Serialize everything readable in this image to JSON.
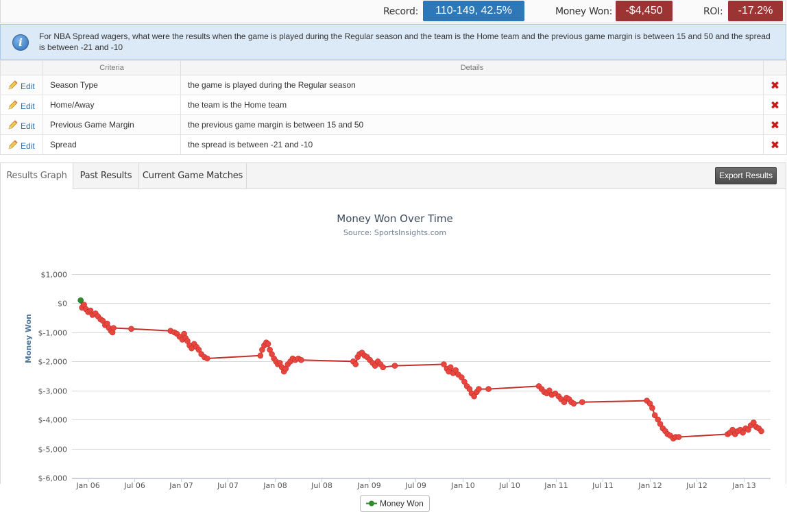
{
  "stats": {
    "record_label": "Record:",
    "record_value": "110-149, 42.5%",
    "money_label": "Money Won:",
    "money_value": "-$4,450",
    "roi_label": "ROI:",
    "roi_value": "-17.2%",
    "colors": {
      "record": "#2f78b8",
      "negative": "#9c3434"
    }
  },
  "info": {
    "icon": "info-icon",
    "text": "For NBA Spread wagers, what were the results when the game is played during the Regular season and the team is the Home team and the previous game margin is between 15 and 50 and the spread is between -21 and -10"
  },
  "criteria_table": {
    "headers": [
      "",
      "Criteria",
      "Details",
      ""
    ],
    "edit_label": "Edit",
    "rows": [
      {
        "criteria": "Season Type",
        "details": "the game is played during the Regular season"
      },
      {
        "criteria": "Home/Away",
        "details": "the team is the Home team"
      },
      {
        "criteria": "Previous Game Margin",
        "details": "the previous game margin is between 15 and 50"
      },
      {
        "criteria": "Spread",
        "details": "the spread is between -21 and -10"
      }
    ]
  },
  "tabs": [
    {
      "label": "Results Graph",
      "active": true
    },
    {
      "label": "Past Results",
      "active": false
    },
    {
      "label": "Current Game Matches",
      "active": false
    }
  ],
  "export_label": "Export Results",
  "chart_data": {
    "type": "line",
    "title": "Money Won Over Time",
    "subtitle": "Source: SportsInsights.com",
    "ylabel": "Money Won",
    "xlabel": "",
    "ylim": [
      -6000,
      1000
    ],
    "yticks": [
      1000,
      0,
      -1000,
      -2000,
      -3000,
      -4000,
      -5000,
      -6000
    ],
    "ytick_labels": [
      "$1,000",
      "$0",
      "$-1,000",
      "$-2,000",
      "$-3,000",
      "$-4,000",
      "$-5,000",
      "$-6,000"
    ],
    "xlim": [
      "2005-11-01",
      "2013-04-15"
    ],
    "xticks": [
      "2006-01-01",
      "2006-07-01",
      "2007-01-01",
      "2007-07-01",
      "2008-01-01",
      "2008-07-01",
      "2009-01-01",
      "2009-07-01",
      "2010-01-01",
      "2010-07-01",
      "2011-01-01",
      "2011-07-01",
      "2012-01-01",
      "2012-07-01",
      "2013-01-01"
    ],
    "xtick_labels": [
      "Jan 06",
      "Jul 06",
      "Jan 07",
      "Jul 07",
      "Jan 08",
      "Jul 08",
      "Jan 09",
      "Jul 09",
      "Jan 10",
      "Jul 10",
      "Jan 11",
      "Jul 11",
      "Jan 12",
      "Jul 12",
      "Jan 13"
    ],
    "grid": true,
    "legend_position": "bottom-center",
    "series": [
      {
        "name": "Money Won",
        "line_color": "#c0302a",
        "marker_color": "#e8463f",
        "start_marker_color": "#2e8b2e",
        "legend_marker_color": "#2e8b2e",
        "points": [
          [
            "2005-12-05",
            100
          ],
          [
            "2005-12-10",
            -150
          ],
          [
            "2005-12-18",
            -50
          ],
          [
            "2005-12-25",
            -200
          ],
          [
            "2006-01-03",
            -300
          ],
          [
            "2006-01-12",
            -250
          ],
          [
            "2006-01-20",
            -400
          ],
          [
            "2006-02-01",
            -350
          ],
          [
            "2006-02-10",
            -450
          ],
          [
            "2006-02-20",
            -550
          ],
          [
            "2006-03-01",
            -600
          ],
          [
            "2006-03-10",
            -750
          ],
          [
            "2006-03-18",
            -700
          ],
          [
            "2006-03-25",
            -850
          ],
          [
            "2006-04-02",
            -950
          ],
          [
            "2006-04-08",
            -1000
          ],
          [
            "2006-04-12",
            -850
          ],
          [
            "2006-06-20",
            -880
          ],
          [
            "2006-11-20",
            -950
          ],
          [
            "2006-12-05",
            -1000
          ],
          [
            "2006-12-15",
            -1050
          ],
          [
            "2006-12-25",
            -1150
          ],
          [
            "2007-01-05",
            -1250
          ],
          [
            "2007-01-12",
            -1050
          ],
          [
            "2007-01-18",
            -1200
          ],
          [
            "2007-01-25",
            -1300
          ],
          [
            "2007-02-02",
            -1450
          ],
          [
            "2007-02-10",
            -1550
          ],
          [
            "2007-02-20",
            -1400
          ],
          [
            "2007-03-01",
            -1500
          ],
          [
            "2007-03-10",
            -1600
          ],
          [
            "2007-03-20",
            -1750
          ],
          [
            "2007-04-01",
            -1850
          ],
          [
            "2007-04-12",
            -1900
          ],
          [
            "2007-11-05",
            -1800
          ],
          [
            "2007-11-12",
            -1600
          ],
          [
            "2007-11-20",
            -1450
          ],
          [
            "2007-11-28",
            -1350
          ],
          [
            "2007-12-05",
            -1400
          ],
          [
            "2007-12-12",
            -1600
          ],
          [
            "2007-12-20",
            -1750
          ],
          [
            "2007-12-28",
            -1900
          ],
          [
            "2008-01-05",
            -2000
          ],
          [
            "2008-01-12",
            -2100
          ],
          [
            "2008-01-20",
            -2050
          ],
          [
            "2008-01-28",
            -2200
          ],
          [
            "2008-02-05",
            -2350
          ],
          [
            "2008-02-12",
            -2250
          ],
          [
            "2008-02-20",
            -2100
          ],
          [
            "2008-03-01",
            -2000
          ],
          [
            "2008-03-10",
            -1900
          ],
          [
            "2008-03-20",
            -1950
          ],
          [
            "2008-04-01",
            -1900
          ],
          [
            "2008-04-12",
            -1950
          ],
          [
            "2008-11-01",
            -2000
          ],
          [
            "2008-11-10",
            -2100
          ],
          [
            "2008-11-18",
            -1850
          ],
          [
            "2008-11-25",
            -1750
          ],
          [
            "2008-12-05",
            -1700
          ],
          [
            "2008-12-15",
            -1800
          ],
          [
            "2008-12-25",
            -1850
          ],
          [
            "2009-01-05",
            -1950
          ],
          [
            "2009-01-15",
            -2050
          ],
          [
            "2009-01-25",
            -2150
          ],
          [
            "2009-02-05",
            -2000
          ],
          [
            "2009-02-15",
            -2100
          ],
          [
            "2009-02-25",
            -2200
          ],
          [
            "2009-04-12",
            -2150
          ],
          [
            "2009-10-20",
            -2100
          ],
          [
            "2009-11-01",
            -2250
          ],
          [
            "2009-11-08",
            -2350
          ],
          [
            "2009-11-15",
            -2200
          ],
          [
            "2009-11-25",
            -2400
          ],
          [
            "2009-12-05",
            -2300
          ],
          [
            "2009-12-15",
            -2450
          ],
          [
            "2009-12-28",
            -2550
          ],
          [
            "2010-01-08",
            -2700
          ],
          [
            "2010-01-18",
            -2850
          ],
          [
            "2010-01-28",
            -2950
          ],
          [
            "2010-02-05",
            -3100
          ],
          [
            "2010-02-15",
            -3200
          ],
          [
            "2010-02-25",
            -3050
          ],
          [
            "2010-03-05",
            -2950
          ],
          [
            "2010-04-12",
            -2950
          ],
          [
            "2010-10-25",
            -2850
          ],
          [
            "2010-11-05",
            -2950
          ],
          [
            "2010-11-15",
            -3050
          ],
          [
            "2010-11-25",
            -3100
          ],
          [
            "2010-12-05",
            -3000
          ],
          [
            "2010-12-15",
            -3150
          ],
          [
            "2010-12-28",
            -3100
          ],
          [
            "2011-01-10",
            -3200
          ],
          [
            "2011-01-20",
            -3300
          ],
          [
            "2011-02-01",
            -3400
          ],
          [
            "2011-02-10",
            -3250
          ],
          [
            "2011-02-20",
            -3300
          ],
          [
            "2011-03-01",
            -3400
          ],
          [
            "2011-03-10",
            -3450
          ],
          [
            "2011-04-12",
            -3400
          ],
          [
            "2011-12-20",
            -3350
          ],
          [
            "2012-01-01",
            -3450
          ],
          [
            "2012-01-10",
            -3600
          ],
          [
            "2012-01-20",
            -3850
          ],
          [
            "2012-02-01",
            -4000
          ],
          [
            "2012-02-10",
            -4150
          ],
          [
            "2012-02-20",
            -4300
          ],
          [
            "2012-03-01",
            -4400
          ],
          [
            "2012-03-10",
            -4500
          ],
          [
            "2012-03-20",
            -4550
          ],
          [
            "2012-04-01",
            -4650
          ],
          [
            "2012-04-10",
            -4600
          ],
          [
            "2012-04-22",
            -4600
          ],
          [
            "2012-10-30",
            -4500
          ],
          [
            "2012-11-08",
            -4450
          ],
          [
            "2012-11-18",
            -4350
          ],
          [
            "2012-11-28",
            -4500
          ],
          [
            "2012-12-08",
            -4400
          ],
          [
            "2012-12-18",
            -4350
          ],
          [
            "2012-12-28",
            -4450
          ],
          [
            "2013-01-08",
            -4300
          ],
          [
            "2013-01-18",
            -4350
          ],
          [
            "2013-01-28",
            -4200
          ],
          [
            "2013-02-08",
            -4100
          ],
          [
            "2013-02-18",
            -4250
          ],
          [
            "2013-02-28",
            -4300
          ],
          [
            "2013-03-10",
            -4400
          ]
        ]
      }
    ]
  }
}
